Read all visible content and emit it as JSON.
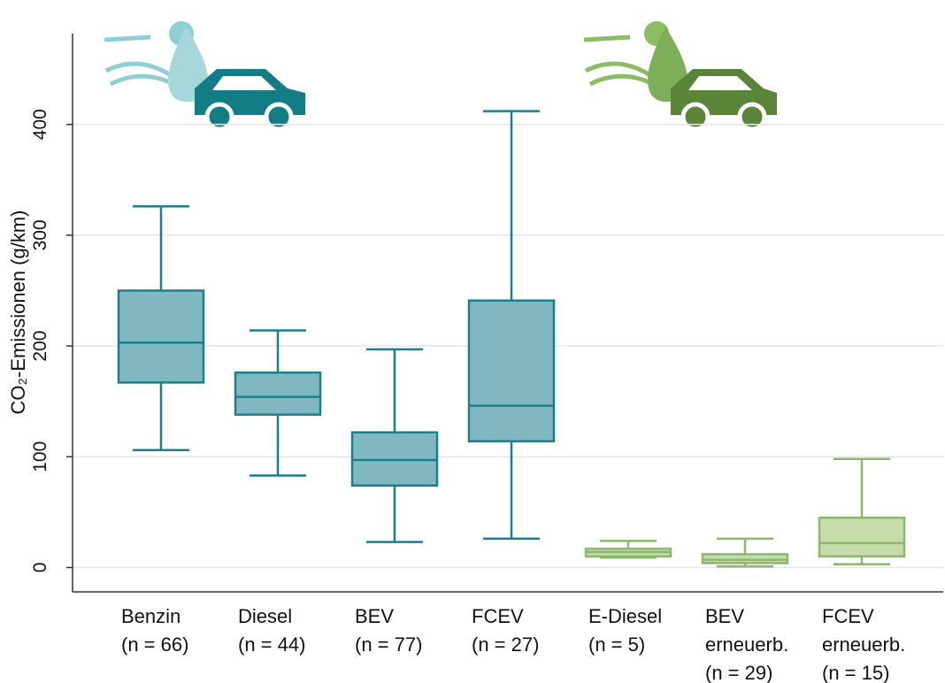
{
  "chart_data": {
    "type": "box",
    "y_label": "CO₂-Emissionen (g/km)",
    "categories": [
      "Benzin\n(n = 66)",
      "Diesel\n(n = 44)",
      "BEV\n(n = 77)",
      "FCEV\n(n = 27)",
      "E-Diesel\n(n = 5)",
      "BEV\nerneuerb.\n(n = 29)",
      "FCEV\nerneuerb.\n(n = 15)"
    ],
    "whisker_low": [
      106,
      83,
      23,
      26,
      9,
      1,
      3
    ],
    "q1": [
      167,
      138,
      74,
      114,
      10,
      4,
      10
    ],
    "median": [
      203,
      154,
      97,
      146,
      14,
      7,
      22
    ],
    "q3": [
      250,
      176,
      122,
      241,
      17,
      12,
      45
    ],
    "whisker_high": [
      326,
      214,
      197,
      412,
      24,
      26,
      98
    ],
    "fill_colors": [
      "#7fb8c1",
      "#7fb8c1",
      "#7fb8c1",
      "#7fb8c1",
      "#c6dcab",
      "#c6dcab",
      "#c6dcab"
    ],
    "line_colors": [
      "#1a7f8c",
      "#1a7f8c",
      "#1a7f8c",
      "#1a7f8c",
      "#8cb86c",
      "#8cb86c",
      "#8cb86c"
    ],
    "ylim": [
      -22,
      482
    ],
    "yticks": [
      0,
      100,
      200,
      300,
      400
    ],
    "grid": true
  }
}
